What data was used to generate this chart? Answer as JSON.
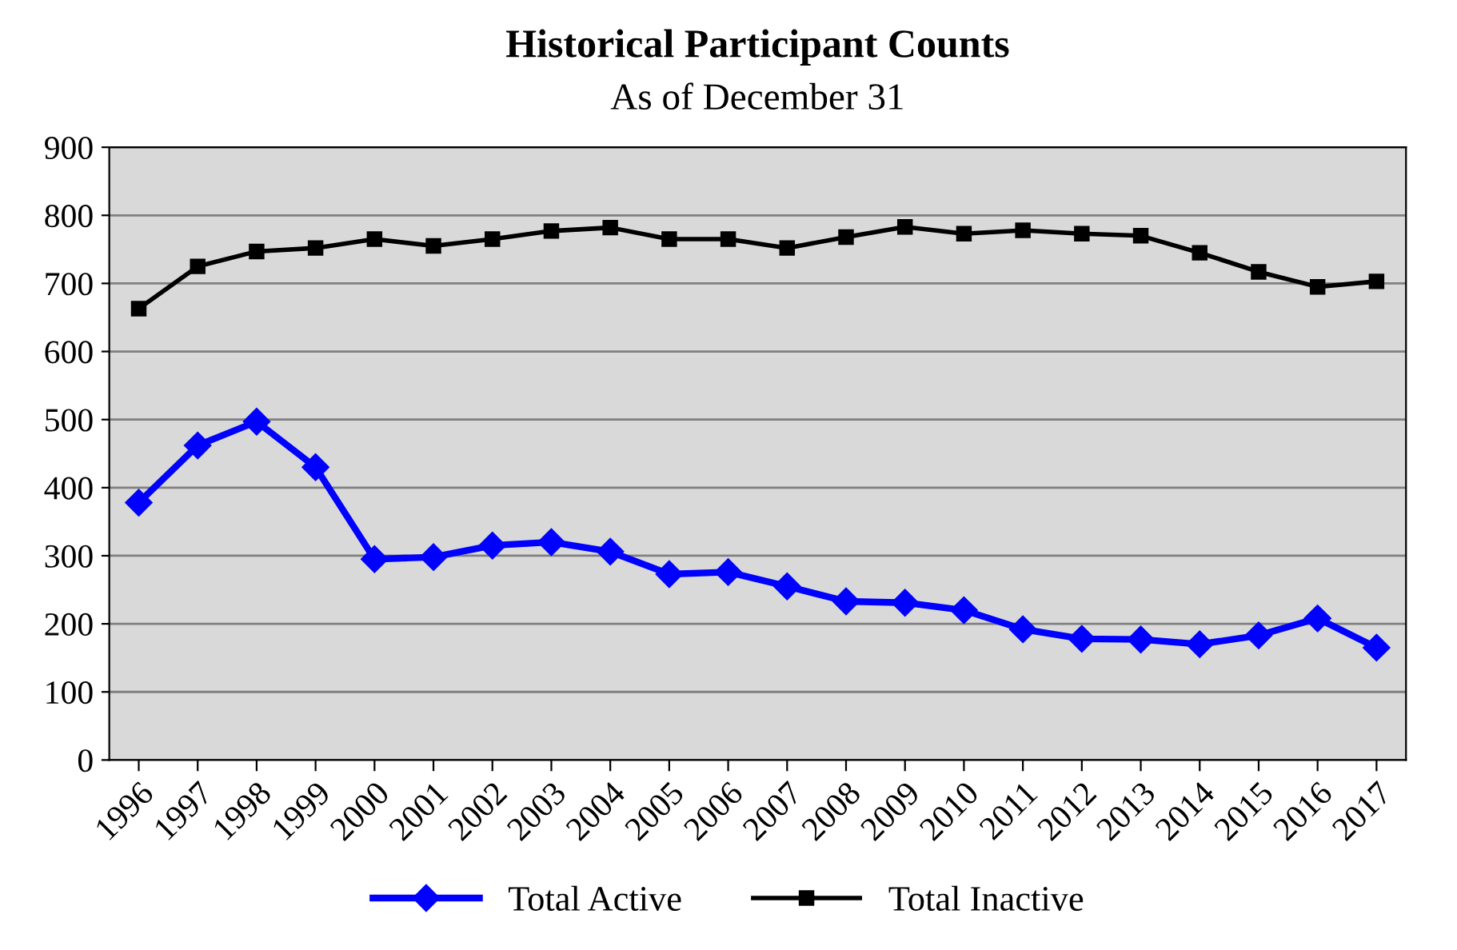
{
  "chart_data": {
    "type": "line",
    "title": "Historical Participant Counts",
    "subtitle": "As of December 31",
    "categories": [
      "1996",
      "1997",
      "1998",
      "1999",
      "2000",
      "2001",
      "2002",
      "2003",
      "2004",
      "2005",
      "2006",
      "2007",
      "2008",
      "2009",
      "2010",
      "2011",
      "2012",
      "2013",
      "2014",
      "2015",
      "2016",
      "2017"
    ],
    "series": [
      {
        "name": "Total Active",
        "color": "#0000ff",
        "marker": "diamond",
        "values": [
          378,
          462,
          497,
          430,
          295,
          298,
          315,
          320,
          306,
          273,
          276,
          255,
          233,
          231,
          220,
          192,
          178,
          177,
          170,
          183,
          208,
          165
        ]
      },
      {
        "name": "Total Inactive",
        "color": "#000000",
        "marker": "square",
        "values": [
          663,
          725,
          747,
          752,
          765,
          755,
          765,
          777,
          782,
          765,
          765,
          752,
          768,
          783,
          773,
          778,
          773,
          770,
          745,
          717,
          695,
          703
        ]
      }
    ],
    "ylim": [
      0,
      900
    ],
    "yticks": [
      0,
      100,
      200,
      300,
      400,
      500,
      600,
      700,
      800,
      900
    ],
    "grid": "y",
    "legend": "bottom"
  }
}
